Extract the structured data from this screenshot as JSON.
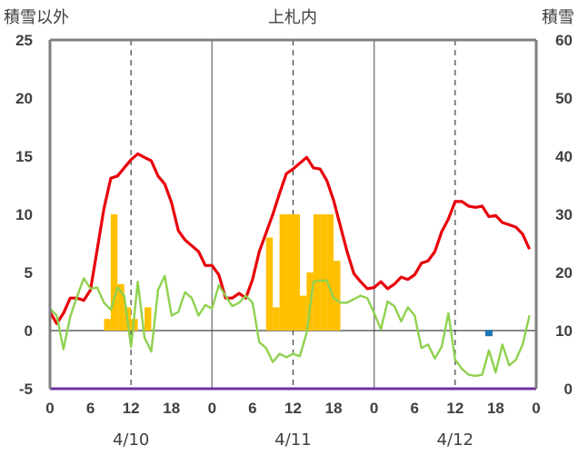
{
  "chart_data": {
    "type": "bar+line",
    "title": "上札内",
    "ylabel_left": "積雪以外",
    "ylabel_right": "積雪",
    "ylim_left": [
      -5,
      25
    ],
    "ylim_right": [
      0,
      60
    ],
    "yticks_left": [
      "-5",
      "0",
      "5",
      "10",
      "15",
      "20",
      "25"
    ],
    "yticks_right": [
      "0",
      "10",
      "20",
      "30",
      "40",
      "50",
      "60"
    ],
    "xticks": [
      "0",
      "6",
      "12",
      "18",
      "0",
      "6",
      "12",
      "18",
      "0",
      "6",
      "12",
      "18",
      "0"
    ],
    "date_labels": [
      "4/10",
      "4/11",
      "4/12"
    ],
    "hours_range": [
      0,
      72
    ],
    "grid": {
      "vertical_solid_every_h": 24,
      "vertical_dashed_at_h": [
        12,
        36,
        60
      ]
    },
    "colors": {
      "temperature": "#e8000b",
      "secondary_line": "#8fd14f",
      "bars": "#ffc000",
      "snow_depth": "#1f77b4",
      "baseline": "#7030a0",
      "frame": "#808080"
    },
    "series": [
      {
        "kind": "bar",
        "axis": "left",
        "values": [
          [
            8,
            1
          ],
          [
            9,
            10
          ],
          [
            10,
            4
          ],
          [
            11,
            2
          ],
          [
            12,
            1
          ],
          [
            14,
            2
          ],
          [
            32,
            8
          ],
          [
            33,
            2
          ],
          [
            34,
            10
          ],
          [
            35,
            10
          ],
          [
            36,
            10
          ],
          [
            37,
            3
          ],
          [
            38,
            5
          ],
          [
            39,
            10
          ],
          [
            40,
            10
          ],
          [
            41,
            10
          ],
          [
            42,
            6
          ]
        ]
      },
      {
        "kind": "line",
        "axis": "left",
        "values": [
          [
            0,
            1.6
          ],
          [
            1,
            0.6
          ],
          [
            2,
            1.5
          ],
          [
            3,
            2.8
          ],
          [
            4,
            2.8
          ],
          [
            5,
            2.6
          ],
          [
            6,
            3.5
          ],
          [
            7,
            7
          ],
          [
            8,
            10.5
          ],
          [
            9,
            13.1
          ],
          [
            10,
            13.3
          ],
          [
            11,
            14
          ],
          [
            12,
            14.7
          ],
          [
            13,
            15.2
          ],
          [
            14,
            14.9
          ],
          [
            15,
            14.6
          ],
          [
            16,
            13.3
          ],
          [
            17,
            12.6
          ],
          [
            18,
            11
          ],
          [
            19,
            8.6
          ],
          [
            20,
            7.8
          ],
          [
            21,
            7.3
          ],
          [
            22,
            6.8
          ],
          [
            23,
            5.6
          ],
          [
            24,
            5.6
          ],
          [
            25,
            4.8
          ],
          [
            26,
            2.8
          ],
          [
            27,
            2.8
          ],
          [
            28,
            3.2
          ],
          [
            29,
            2.8
          ],
          [
            30,
            4.4
          ],
          [
            31,
            6.8
          ],
          [
            32,
            8.4
          ],
          [
            33,
            10
          ],
          [
            34,
            11.8
          ],
          [
            35,
            13.5
          ],
          [
            36,
            13.9
          ],
          [
            37,
            14.4
          ],
          [
            38,
            14.9
          ],
          [
            39,
            14
          ],
          [
            40,
            13.9
          ],
          [
            41,
            12.9
          ],
          [
            42,
            11.2
          ],
          [
            43,
            9
          ],
          [
            44,
            6.8
          ],
          [
            45,
            4.9
          ],
          [
            46,
            4.2
          ],
          [
            47,
            3.6
          ],
          [
            48,
            3.7
          ],
          [
            49,
            4.2
          ],
          [
            50,
            3.6
          ],
          [
            51,
            4
          ],
          [
            52,
            4.6
          ],
          [
            53,
            4.4
          ],
          [
            54,
            4.8
          ],
          [
            55,
            5.8
          ],
          [
            56,
            6
          ],
          [
            57,
            6.8
          ],
          [
            58,
            8.5
          ],
          [
            59,
            9.6
          ],
          [
            60,
            11.1
          ],
          [
            61,
            11.1
          ],
          [
            62,
            10.7
          ],
          [
            63,
            10.6
          ],
          [
            64,
            10.7
          ],
          [
            65,
            9.8
          ],
          [
            66,
            9.9
          ],
          [
            67,
            9.3
          ],
          [
            68,
            9.1
          ],
          [
            69,
            8.9
          ],
          [
            70,
            8.3
          ],
          [
            71,
            7
          ]
        ]
      },
      {
        "kind": "line",
        "axis": "left",
        "values": [
          [
            0,
            1.9
          ],
          [
            1,
            1.3
          ],
          [
            2,
            -1.6
          ],
          [
            3,
            1.2
          ],
          [
            4,
            2.9
          ],
          [
            5,
            4.5
          ],
          [
            6,
            3.6
          ],
          [
            7,
            3.7
          ],
          [
            8,
            2.4
          ],
          [
            9,
            1.8
          ],
          [
            10,
            3.7
          ],
          [
            11,
            3
          ],
          [
            12,
            -1.4
          ],
          [
            13,
            4.2
          ],
          [
            14,
            -0.6
          ],
          [
            15,
            -1.8
          ],
          [
            16,
            3.5
          ],
          [
            17,
            4.7
          ],
          [
            18,
            1.3
          ],
          [
            19,
            1.6
          ],
          [
            20,
            3.3
          ],
          [
            21,
            2.8
          ],
          [
            22,
            1.3
          ],
          [
            23,
            2.2
          ],
          [
            24,
            1.9
          ],
          [
            25,
            3.9
          ],
          [
            26,
            3
          ],
          [
            27,
            2.1
          ],
          [
            28,
            2.4
          ],
          [
            29,
            3
          ],
          [
            30,
            2.4
          ],
          [
            31,
            -1
          ],
          [
            32,
            -1.5
          ],
          [
            33,
            -2.7
          ],
          [
            34,
            -2
          ],
          [
            35,
            -2.3
          ],
          [
            36,
            -2
          ],
          [
            37,
            -2.2
          ],
          [
            38,
            -0.2
          ],
          [
            39,
            4.2
          ],
          [
            40,
            4.3
          ],
          [
            41,
            4.3
          ],
          [
            42,
            2.8
          ],
          [
            43,
            2.4
          ],
          [
            44,
            2.4
          ],
          [
            45,
            2.7
          ],
          [
            46,
            3
          ],
          [
            47,
            2.8
          ],
          [
            48,
            1.5
          ],
          [
            49,
            0.1
          ],
          [
            50,
            2.5
          ],
          [
            51,
            2.1
          ],
          [
            52,
            0.8
          ],
          [
            53,
            2
          ],
          [
            54,
            1.3
          ],
          [
            55,
            -1.5
          ],
          [
            56,
            -1.2
          ],
          [
            57,
            -2.4
          ],
          [
            58,
            -1.4
          ],
          [
            59,
            1.5
          ],
          [
            60,
            -2.5
          ],
          [
            61,
            -3.3
          ],
          [
            62,
            -3.8
          ],
          [
            63,
            -3.9
          ],
          [
            64,
            -3.8
          ],
          [
            65,
            -1.7
          ],
          [
            66,
            -3.6
          ],
          [
            67,
            -1.2
          ],
          [
            68,
            -3
          ],
          [
            69,
            -2.5
          ],
          [
            70,
            -1.2
          ],
          [
            71,
            1.3
          ]
        ]
      },
      {
        "kind": "point",
        "axis": "right",
        "values": [
          [
            65,
            9.5
          ]
        ]
      }
    ]
  }
}
